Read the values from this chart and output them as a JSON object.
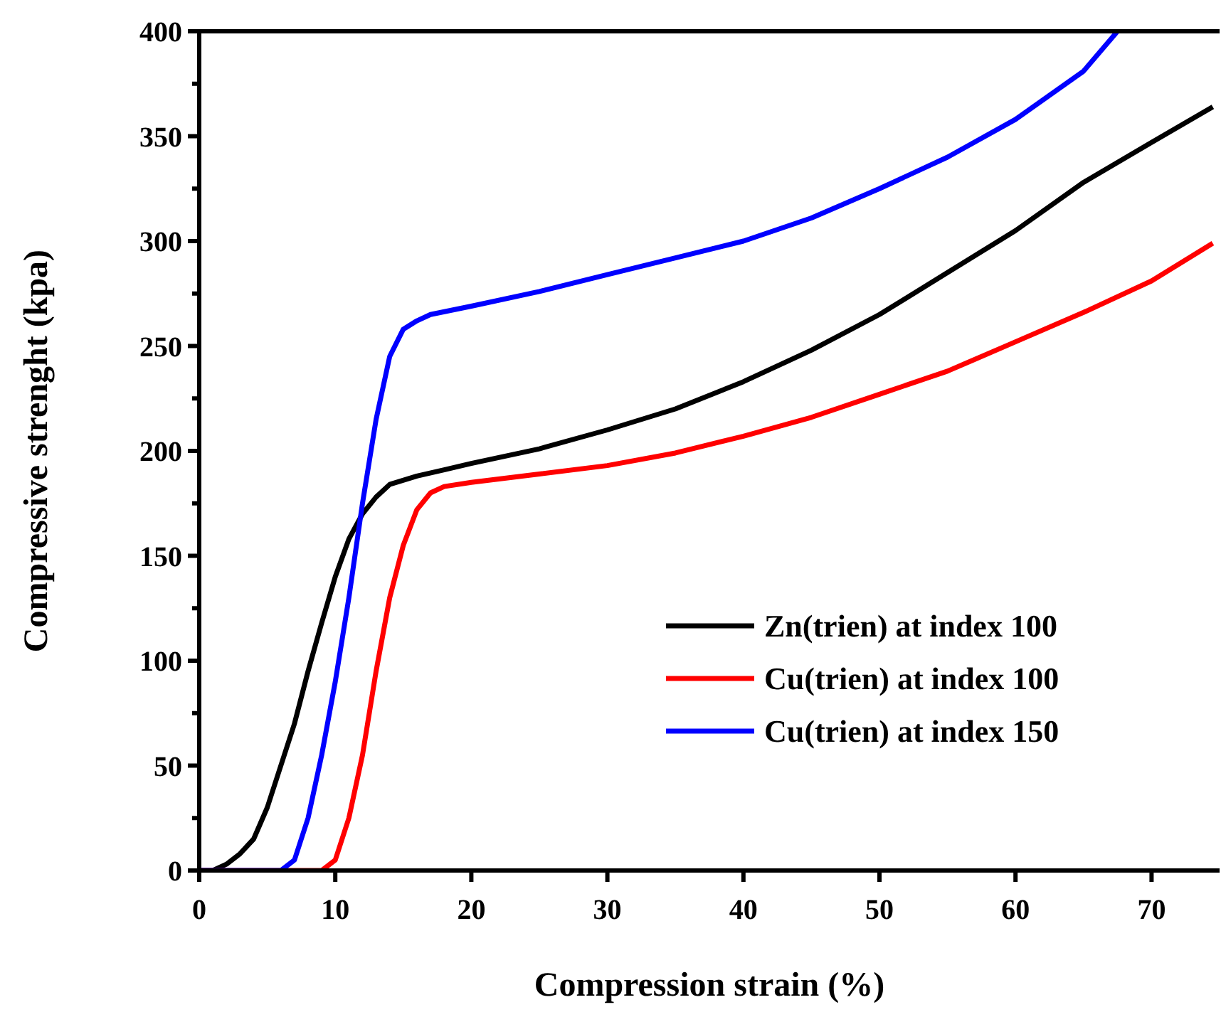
{
  "chart_data": {
    "type": "line",
    "xlabel": "Compression strain (%)",
    "ylabel": "Compressive strenght (kpa)",
    "xlim": [
      0,
      75
    ],
    "xticks": [
      0,
      10,
      20,
      30,
      40,
      50,
      60,
      70
    ],
    "ylim": [
      0,
      400
    ],
    "yticks": [
      0,
      {
        "value": 25,
        "label": null
      },
      50,
      {
        "value": 75,
        "label": null
      },
      100,
      {
        "value": 125,
        "label": null
      },
      150,
      {
        "value": 175,
        "label": null
      },
      200,
      {
        "value": 225,
        "label": null
      },
      250,
      {
        "value": 275,
        "label": null
      },
      300,
      {
        "value": 325,
        "label": null
      },
      350,
      {
        "value": 375,
        "label": null
      },
      400
    ],
    "grid": false,
    "legend": "right",
    "line_style": "solid",
    "series": [
      {
        "name": "Zn(trien) at index 100",
        "color": "#000000",
        "x": [
          0,
          1,
          2,
          3,
          4,
          5,
          6,
          7,
          8,
          9,
          10,
          11,
          12,
          13,
          14,
          16,
          18,
          20,
          25,
          30,
          35,
          40,
          45,
          50,
          55,
          60,
          65,
          70,
          74.5
        ],
        "values": [
          0,
          0,
          3,
          8,
          15,
          30,
          50,
          70,
          95,
          118,
          140,
          158,
          170,
          178,
          184,
          188,
          191,
          194,
          201,
          210,
          220,
          233,
          248,
          265,
          285,
          305,
          328,
          347,
          364
        ]
      },
      {
        "name": "Cu(trien) at index 100",
        "color": "#ff0000",
        "x": [
          0,
          9,
          10,
          11,
          12,
          13,
          14,
          15,
          16,
          17,
          18,
          20,
          25,
          30,
          35,
          40,
          45,
          50,
          55,
          60,
          65,
          70,
          74.5
        ],
        "values": [
          0,
          0,
          5,
          25,
          55,
          95,
          130,
          155,
          172,
          180,
          183,
          185,
          189,
          193,
          199,
          207,
          216,
          227,
          238,
          252,
          266,
          281,
          299
        ]
      },
      {
        "name": "Cu(trien) at index 150",
        "color": "#0000ff",
        "x": [
          0,
          6,
          7,
          8,
          9,
          10,
          11,
          12,
          13,
          14,
          15,
          16,
          17,
          20,
          25,
          30,
          35,
          40,
          45,
          50,
          55,
          60,
          65,
          67.5
        ],
        "values": [
          0,
          0,
          5,
          25,
          55,
          90,
          130,
          175,
          215,
          245,
          258,
          262,
          265,
          269,
          276,
          284,
          292,
          300,
          311,
          325,
          340,
          358,
          381,
          400
        ]
      }
    ]
  }
}
